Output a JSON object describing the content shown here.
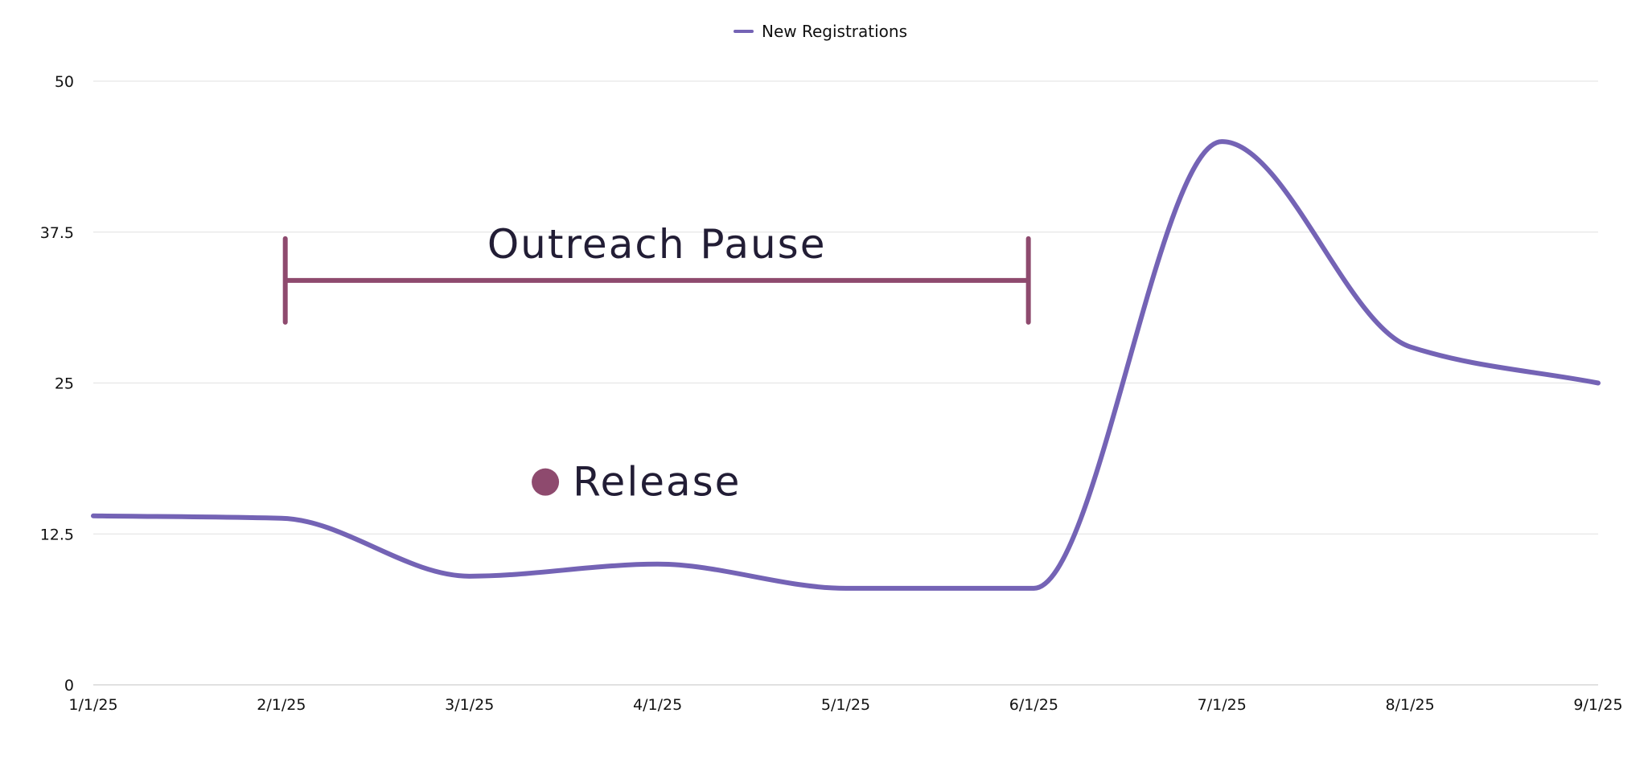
{
  "chart_data": {
    "type": "line",
    "x": [
      "1/1/25",
      "2/1/25",
      "3/1/25",
      "4/1/25",
      "5/1/25",
      "6/1/25",
      "7/1/25",
      "8/1/25",
      "9/1/25"
    ],
    "series": [
      {
        "name": "New Registrations",
        "color": "#7463b5",
        "values": [
          14,
          13.8,
          9,
          10,
          8,
          8,
          45,
          28,
          25
        ]
      }
    ],
    "ylim": [
      0,
      50
    ],
    "yticks": [
      0,
      12.5,
      25,
      37.5,
      50
    ],
    "grid": true,
    "legend_position": "top-center",
    "annotations": [
      {
        "type": "range",
        "label": "Outreach Pause",
        "x_start": "2/1/25",
        "x_end": "6/1/25",
        "y": 33.5,
        "color": "#8e4a6e"
      },
      {
        "type": "point",
        "label": "Release",
        "x": "3/15/25",
        "y": 16.8,
        "color": "#8e4a6e"
      }
    ]
  }
}
